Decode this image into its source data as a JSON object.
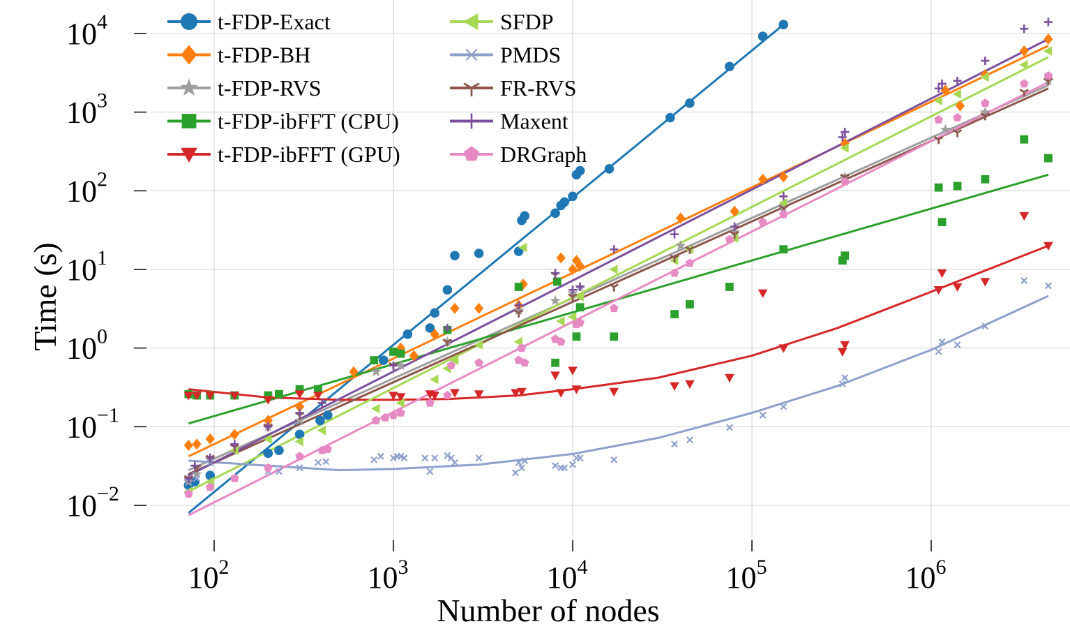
{
  "chart_data": {
    "type": "scatter",
    "title": "",
    "xlabel": "Number of nodes",
    "ylabel": "Time (s)",
    "x_scale": "log",
    "y_scale": "log",
    "xlim": [
      55,
      5500000
    ],
    "ylim": [
      0.0045,
      18000
    ],
    "x_ticks": [
      {
        "value": 100,
        "base": "10",
        "exp": "2"
      },
      {
        "value": 1000,
        "base": "10",
        "exp": "3"
      },
      {
        "value": 10000,
        "base": "10",
        "exp": "4"
      },
      {
        "value": 100000,
        "base": "10",
        "exp": "5"
      },
      {
        "value": 1000000,
        "base": "10",
        "exp": "6"
      }
    ],
    "y_ticks": [
      {
        "value": 0.01,
        "base": "10",
        "exp": "−2"
      },
      {
        "value": 0.1,
        "base": "10",
        "exp": "−1"
      },
      {
        "value": 1,
        "base": "10",
        "exp": "0"
      },
      {
        "value": 10,
        "base": "10",
        "exp": "1"
      },
      {
        "value": 100,
        "base": "10",
        "exp": "2"
      },
      {
        "value": 1000,
        "base": "10",
        "exp": "3"
      },
      {
        "value": 10000,
        "base": "10",
        "exp": "4"
      }
    ],
    "grid": true,
    "legend_position": "top-left",
    "series": [
      {
        "name": "t-FDP-Exact",
        "color": "#1f77b4",
        "marker": "circle",
        "x": [
          72,
          78,
          95,
          200,
          230,
          300,
          390,
          430,
          880,
          1200,
          1600,
          1700,
          2000,
          2200,
          3000,
          5000,
          5200,
          5400,
          8000,
          8600,
          9000,
          10000,
          10500,
          11000,
          16000,
          35000,
          45000,
          75000,
          115000,
          150000
        ],
        "y": [
          0.018,
          0.02,
          0.024,
          0.046,
          0.05,
          0.08,
          0.12,
          0.14,
          0.7,
          1.5,
          1.8,
          2.8,
          5.5,
          15,
          16,
          17,
          42,
          48,
          52,
          65,
          72,
          85,
          160,
          180,
          190,
          850,
          1300,
          3800,
          9200,
          13000
        ],
        "fit": [
          [
            72,
            0.008
          ],
          [
            150000,
            13000
          ]
        ]
      },
      {
        "name": "t-FDP-BH",
        "color": "#ff7f0e",
        "marker": "diamond",
        "x": [
          72,
          80,
          95,
          130,
          200,
          300,
          600,
          1100,
          1300,
          1700,
          2200,
          3000,
          5000,
          5300,
          8600,
          10000,
          10500,
          11000,
          40000,
          80000,
          115000,
          150000,
          330000,
          1200000,
          1450000,
          2000000,
          3300000,
          4500000
        ],
        "y": [
          0.058,
          0.06,
          0.07,
          0.08,
          0.12,
          0.18,
          0.5,
          1.0,
          0.8,
          1.5,
          3.2,
          3.2,
          3.5,
          6.5,
          14,
          10,
          13,
          11,
          45,
          55,
          140,
          150,
          400,
          1900,
          1200,
          3000,
          6000,
          8500
        ],
        "fit": [
          [
            72,
            0.042
          ],
          [
            4500000,
            7000
          ]
        ]
      },
      {
        "name": "t-FDP-RVS",
        "color": "#9e9e9e",
        "marker": "star",
        "x": [
          72,
          80,
          95,
          200,
          300,
          800,
          1100,
          2000,
          5000,
          8000,
          10000,
          11000,
          40000,
          80000,
          150000,
          330000,
          1200000,
          2000000,
          4500000
        ],
        "y": [
          0.02,
          0.025,
          0.04,
          0.1,
          0.12,
          0.5,
          0.6,
          1.2,
          3,
          4,
          5,
          6,
          20,
          30,
          60,
          150,
          600,
          1000,
          2500
        ],
        "fit": [
          [
            72,
            0.028
          ],
          [
            4500000,
            2200
          ]
        ]
      },
      {
        "name": "t-FDP-ibFFT (CPU)",
        "color": "#2ca02c",
        "marker": "square",
        "x": [
          72,
          80,
          95,
          130,
          200,
          230,
          300,
          380,
          780,
          1000,
          1100,
          2000,
          5000,
          8000,
          8200,
          10500,
          11000,
          17000,
          37000,
          45000,
          75000,
          150000,
          320000,
          330000,
          1100000,
          1150000,
          1400000,
          2000000,
          3300000,
          4500000
        ],
        "y": [
          0.26,
          0.25,
          0.25,
          0.25,
          0.25,
          0.26,
          0.3,
          0.3,
          0.7,
          0.9,
          0.85,
          1.7,
          6,
          0.65,
          7,
          1.4,
          3.3,
          1.4,
          2.7,
          3.6,
          6,
          18,
          13,
          15,
          110,
          40,
          115,
          140,
          450,
          260
        ],
        "fit": [
          [
            72,
            0.11
          ],
          [
            4500000,
            160
          ]
        ]
      },
      {
        "name": "t-FDP-ibFFT (GPU)",
        "color": "#d62728",
        "marker": "triangle-down",
        "x": [
          72,
          80,
          95,
          130,
          200,
          300,
          380,
          1000,
          1100,
          1600,
          1700,
          2200,
          3000,
          4800,
          5200,
          8000,
          8600,
          10000,
          10500,
          17000,
          37000,
          45000,
          75000,
          115000,
          150000,
          320000,
          330000,
          1100000,
          1150000,
          1400000,
          2000000,
          3300000,
          4500000
        ],
        "y": [
          0.25,
          0.25,
          0.25,
          0.25,
          0.22,
          0.26,
          0.25,
          0.25,
          0.24,
          0.26,
          0.25,
          0.27,
          0.26,
          0.27,
          0.28,
          0.45,
          0.27,
          0.52,
          0.3,
          0.28,
          0.33,
          0.35,
          0.42,
          5,
          1.0,
          0.9,
          1.1,
          5.5,
          9,
          6,
          7,
          48,
          20
        ],
        "fit": [
          [
            72,
            0.3
          ],
          [
            200,
            0.235
          ],
          [
            500,
            0.22
          ],
          [
            1000,
            0.22
          ],
          [
            2000,
            0.225
          ],
          [
            5000,
            0.25
          ],
          [
            10000,
            0.3
          ],
          [
            30000,
            0.42
          ],
          [
            100000,
            0.8
          ],
          [
            300000,
            1.8
          ],
          [
            1000000,
            5.2
          ],
          [
            4500000,
            20
          ]
        ]
      },
      {
        "name": "SFDP",
        "color": "#a6d854",
        "marker": "triangle-left",
        "x": [
          72,
          95,
          130,
          200,
          300,
          400,
          800,
          1100,
          1700,
          2000,
          2200,
          3000,
          5000,
          5300,
          8600,
          10000,
          11000,
          17000,
          37000,
          45000,
          80000,
          150000,
          330000,
          1100000,
          1400000,
          2000000,
          3300000,
          4500000
        ],
        "y": [
          0.015,
          0.02,
          0.05,
          0.07,
          0.065,
          0.09,
          0.17,
          0.2,
          0.4,
          0.55,
          0.7,
          1.1,
          1.2,
          19,
          2.2,
          2.5,
          4.5,
          10,
          13,
          18,
          25,
          70,
          350,
          1400,
          1700,
          2800,
          4000,
          6000
        ],
        "fit": [
          [
            72,
            0.015
          ],
          [
            4500000,
            5000
          ]
        ]
      },
      {
        "name": "PMDS",
        "color": "#8da0cb",
        "marker": "x",
        "x": [
          72,
          80,
          95,
          130,
          200,
          230,
          300,
          380,
          420,
          780,
          850,
          1000,
          1050,
          1100,
          1150,
          1500,
          1600,
          1700,
          2000,
          2100,
          2200,
          3000,
          4800,
          5000,
          5200,
          5400,
          8000,
          8600,
          9000,
          10000,
          10500,
          11000,
          17000,
          37000,
          45000,
          75000,
          115000,
          150000,
          320000,
          330000,
          1100000,
          1150000,
          1400000,
          2000000,
          3300000,
          4500000
        ],
        "y": [
          0.02,
          0.022,
          0.035,
          0.022,
          0.027,
          0.027,
          0.03,
          0.035,
          0.036,
          0.038,
          0.042,
          0.04,
          0.042,
          0.042,
          0.04,
          0.04,
          0.027,
          0.04,
          0.043,
          0.04,
          0.035,
          0.04,
          0.026,
          0.035,
          0.03,
          0.037,
          0.032,
          0.03,
          0.03,
          0.033,
          0.04,
          0.04,
          0.038,
          0.06,
          0.068,
          0.098,
          0.14,
          0.18,
          0.35,
          0.42,
          0.9,
          1.2,
          1.1,
          1.9,
          7.2,
          6.2
        ],
        "fit": [
          [
            72,
            0.037
          ],
          [
            200,
            0.032
          ],
          [
            500,
            0.028
          ],
          [
            1000,
            0.029
          ],
          [
            3000,
            0.033
          ],
          [
            10000,
            0.045
          ],
          [
            30000,
            0.072
          ],
          [
            100000,
            0.15
          ],
          [
            300000,
            0.33
          ],
          [
            1000000,
            0.95
          ],
          [
            4500000,
            4.6
          ]
        ]
      },
      {
        "name": "FR-RVS",
        "color": "#8c564b",
        "marker": "tri-down",
        "x": [
          72,
          80,
          95,
          130,
          200,
          300,
          1000,
          2000,
          5000,
          8000,
          10000,
          17000,
          37000,
          45000,
          80000,
          150000,
          330000,
          1100000,
          1400000,
          2000000,
          3300000,
          4500000
        ],
        "y": [
          0.022,
          0.03,
          0.04,
          0.055,
          0.1,
          0.14,
          0.6,
          1.2,
          2.8,
          8.5,
          4.5,
          6,
          14,
          18,
          28,
          60,
          150,
          450,
          550,
          900,
          1800,
          2500
        ],
        "fit": [
          [
            72,
            0.025
          ],
          [
            4500000,
            2000
          ]
        ]
      },
      {
        "name": "Maxent",
        "color": "#7b4f9d",
        "marker": "plus",
        "x": [
          72,
          78,
          95,
          130,
          200,
          300,
          400,
          1000,
          2000,
          5000,
          8000,
          10000,
          11000,
          17000,
          37000,
          80000,
          150000,
          320000,
          330000,
          1100000,
          1150000,
          1400000,
          2000000,
          3300000,
          4500000
        ],
        "y": [
          0.022,
          0.032,
          0.04,
          0.06,
          0.1,
          0.15,
          0.2,
          0.6,
          1.8,
          3.5,
          9,
          5.5,
          6,
          18,
          28,
          35,
          85,
          480,
          560,
          2000,
          2300,
          2500,
          4500,
          11500,
          14000
        ],
        "fit": [
          [
            72,
            0.024
          ],
          [
            4500000,
            8500
          ]
        ]
      },
      {
        "name": "DRGraph",
        "color": "#e78ac3",
        "marker": "pentagon",
        "x": [
          72,
          95,
          130,
          200,
          300,
          400,
          430,
          800,
          900,
          1000,
          1100,
          1600,
          2000,
          2100,
          3000,
          5000,
          5200,
          5400,
          8000,
          8600,
          10500,
          11000,
          17000,
          37000,
          45000,
          75000,
          115000,
          150000,
          330000,
          1100000,
          1400000,
          2000000,
          3300000,
          4500000
        ],
        "y": [
          0.014,
          0.017,
          0.022,
          0.03,
          0.042,
          0.05,
          0.052,
          0.12,
          0.13,
          0.14,
          0.15,
          0.2,
          0.25,
          0.6,
          0.65,
          0.7,
          1.0,
          0.65,
          1.3,
          1.2,
          2.0,
          2.1,
          3.2,
          9,
          12,
          24,
          40,
          50,
          130,
          800,
          850,
          1300,
          2300,
          2900
        ],
        "fit": [
          [
            72,
            0.0075
          ],
          [
            4500000,
            2400
          ]
        ]
      }
    ]
  }
}
